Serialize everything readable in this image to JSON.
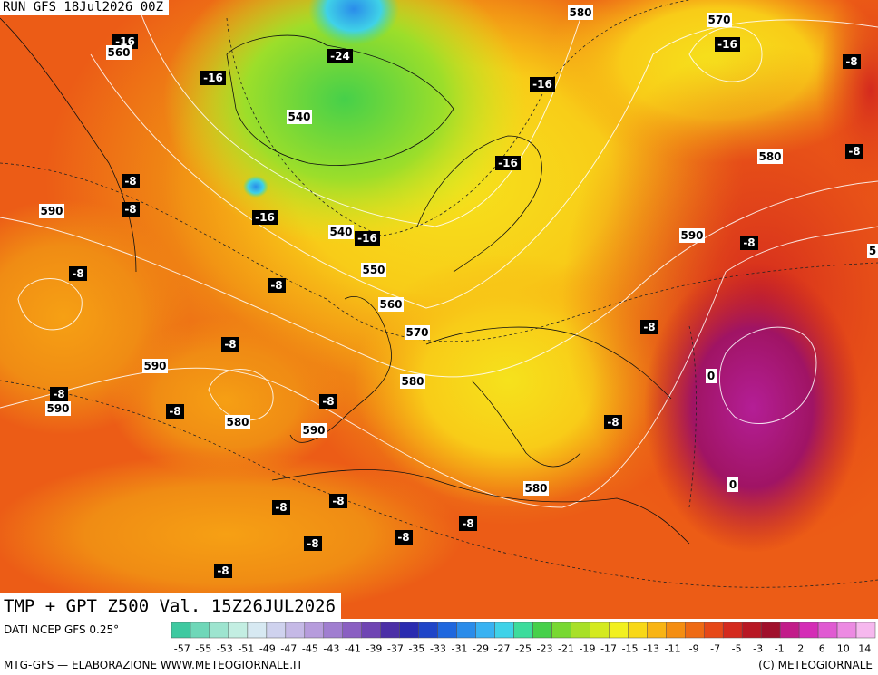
{
  "header": {
    "run": "RUN GFS 18Jul2026 00Z",
    "title": "TMP + GPT Z500 Val. 15Z26JUL2026"
  },
  "map_labels": {
    "temperature": [
      "-16",
      "-16",
      "-24",
      "-16",
      "-16",
      "-8",
      "-8",
      "-8",
      "-16",
      "-8",
      "-16",
      "-16",
      "-8",
      "-8",
      "-8",
      "-8",
      "-8",
      "-8",
      "-8",
      "-8",
      "-8",
      "-8",
      "-8",
      "-8",
      "-8",
      "-8",
      "-8"
    ],
    "isotherm_zero": [
      "0",
      "0",
      "5"
    ],
    "geopotential": [
      "560",
      "580",
      "570",
      "540",
      "580",
      "590",
      "540",
      "550",
      "590",
      "560",
      "570",
      "590",
      "580",
      "590",
      "580",
      "590",
      "580"
    ]
  },
  "colorbar": {
    "colors": [
      "#3ec9a0",
      "#6fd7b8",
      "#9de4cf",
      "#c3eee2",
      "#d7e9f2",
      "#cfd2ee",
      "#c5b9e6",
      "#b69cdc",
      "#a07ed0",
      "#8a5fc2",
      "#6f45b3",
      "#4b2fa6",
      "#2a2bb0",
      "#1f45c8",
      "#1f67de",
      "#2a8cea",
      "#38b2f2",
      "#3fd2e8",
      "#3ddc9c",
      "#46d04a",
      "#78d832",
      "#a8e028",
      "#d4ea20",
      "#f2f020",
      "#f8d818",
      "#f8b414",
      "#f48e12",
      "#ee6a14",
      "#e64818",
      "#d42a1e",
      "#b81824",
      "#a0102c",
      "#c21c8a",
      "#d42cb6",
      "#e05ad2",
      "#ec8ae2",
      "#f6b8ee"
    ],
    "labels": [
      "-57",
      "-55",
      "-53",
      "-51",
      "-49",
      "-47",
      "-45",
      "-43",
      "-41",
      "-39",
      "-37",
      "-35",
      "-33",
      "-31",
      "-29",
      "-27",
      "-25",
      "-23",
      "-21",
      "-19",
      "-17",
      "-15",
      "-13",
      "-11",
      "-9",
      "-7",
      "-5",
      "-3",
      "-1",
      "2",
      "6",
      "10",
      "14"
    ]
  },
  "footer": {
    "source": "DATI NCEP GFS 0.25°",
    "credits": "MTG-GFS — ELABORAZIONE WWW.METEOGIORNALE.IT",
    "copyright": "(C) METEOGIORNALE"
  }
}
